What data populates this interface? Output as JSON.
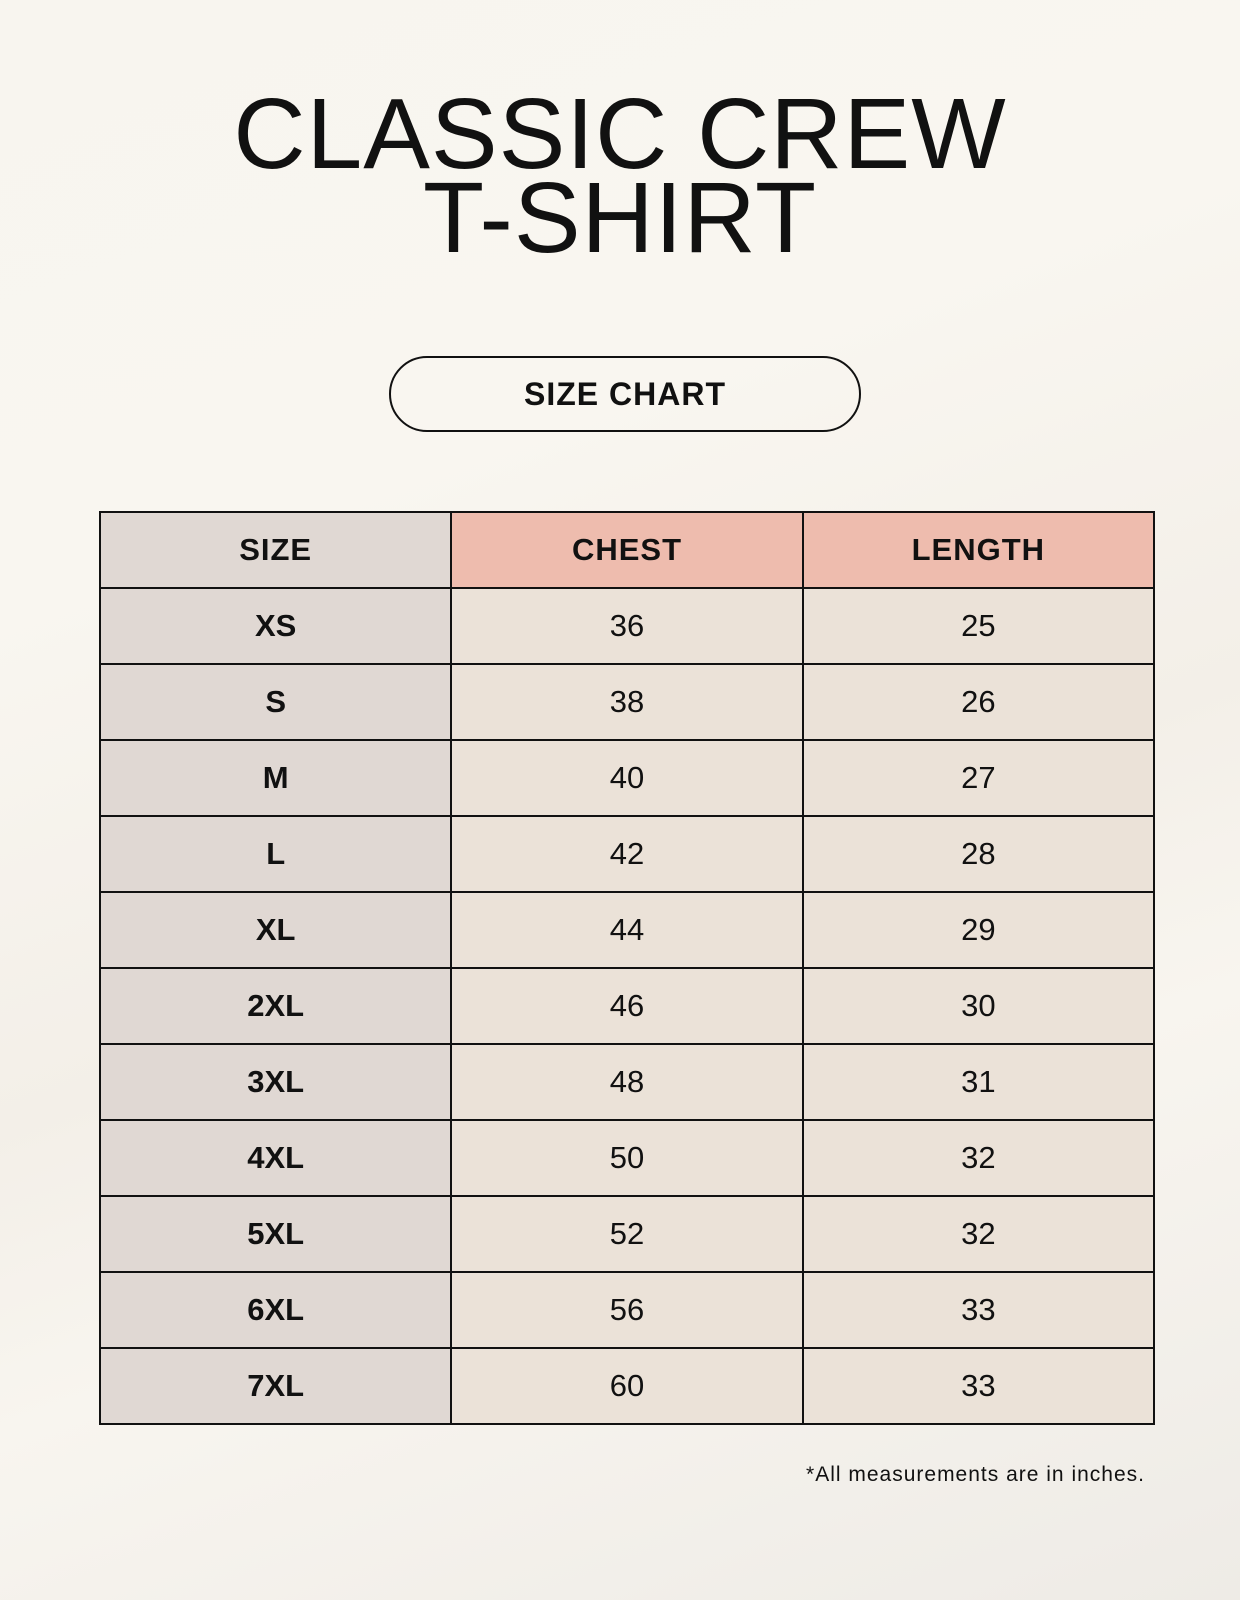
{
  "title_line1": "CLASSIC CREW",
  "title_line2": "T-SHIRT",
  "badge": "SIZE CHART",
  "columns": [
    "SIZE",
    "CHEST",
    "LENGTH"
  ],
  "rows": [
    [
      "XS",
      "36",
      "25"
    ],
    [
      "S",
      "38",
      "26"
    ],
    [
      "M",
      "40",
      "27"
    ],
    [
      "L",
      "42",
      "28"
    ],
    [
      "XL",
      "44",
      "29"
    ],
    [
      "2XL",
      "46",
      "30"
    ],
    [
      "3XL",
      "48",
      "31"
    ],
    [
      "4XL",
      "50",
      "32"
    ],
    [
      "5XL",
      "52",
      "32"
    ],
    [
      "6XL",
      "56",
      "33"
    ],
    [
      "7XL",
      "60",
      "33"
    ]
  ],
  "footnote": "*All measurements are in inches.",
  "colors": {
    "header_accent": "#eebcae",
    "size_column": "#e0d8d3",
    "value_cells": "#ebe2d8"
  }
}
